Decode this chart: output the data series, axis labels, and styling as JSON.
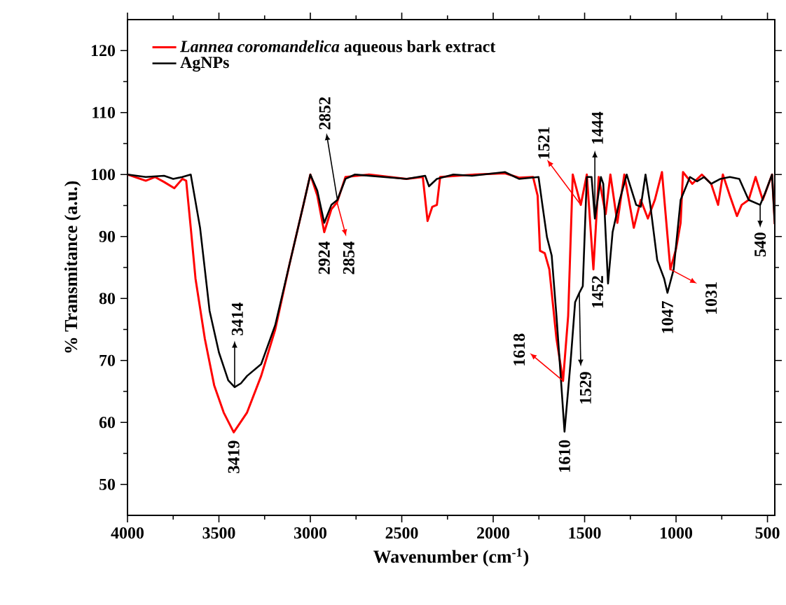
{
  "chart_data": {
    "type": "line",
    "xlabel": "Wavenumber (cm$^{-1}$)",
    "ylabel": "% Transmitance (a.u.)",
    "xlim": [
      4000,
      460
    ],
    "xticks": [
      4000,
      3500,
      3000,
      2500,
      2000,
      1500,
      1000,
      500
    ],
    "ylim": [
      45,
      125
    ],
    "yticks": [
      50,
      60,
      70,
      80,
      90,
      100,
      110,
      120
    ],
    "grid": false,
    "legend": "top left",
    "line_style": "solid",
    "series": [
      {
        "name": "*Lannea coromandelica* aqueous bark extract",
        "color": "#ff0000",
        "x": [
          4000,
          3900,
          3850,
          3800,
          3744,
          3700,
          3679,
          3654,
          3628,
          3577,
          3526,
          3474,
          3419,
          3346,
          3269,
          3192,
          3115,
          3038,
          3000,
          2962,
          2924,
          2885,
          2854,
          2808,
          2679,
          2474,
          2385,
          2359,
          2333,
          2308,
          2290,
          2100,
          1936,
          1859,
          1782,
          1757,
          1744,
          1718,
          1693,
          1654,
          1618,
          1590,
          1565,
          1521,
          1488,
          1452,
          1423,
          1385,
          1359,
          1321,
          1283,
          1231,
          1193,
          1154,
          1116,
          1077,
          1031,
          1000,
          975,
          962,
          911,
          859,
          808,
          770,
          744,
          706,
          667,
          641,
          603,
          565,
          526,
          475,
          460
        ],
        "values": [
          100,
          99,
          99.6,
          98.8,
          97.8,
          99.3,
          99,
          91.4,
          83.2,
          73.5,
          66,
          61.6,
          58.4,
          61.6,
          67.5,
          75,
          85.4,
          95.1,
          100,
          96.6,
          90.7,
          94.4,
          95.5,
          99.6,
          100,
          99.3,
          99.6,
          92.5,
          94.8,
          95.1,
          99.6,
          100,
          100.2,
          99.5,
          99.6,
          96.6,
          87.7,
          87.3,
          84.7,
          73.5,
          66.7,
          77.2,
          100,
          95.1,
          100,
          84.7,
          99.6,
          93.6,
          100,
          92.2,
          100,
          91.4,
          95.9,
          92.9,
          95.9,
          100.4,
          84.7,
          88,
          92.2,
          100.4,
          98.5,
          100,
          98.5,
          95.1,
          100,
          96.6,
          93.3,
          95.1,
          95.9,
          99.6,
          95.9,
          100,
          92
        ]
      },
      {
        "name": "AgNPs",
        "color": "#000000",
        "x": [
          4000,
          3900,
          3800,
          3750,
          3700,
          3654,
          3603,
          3551,
          3500,
          3449,
          3414,
          3380,
          3346,
          3269,
          3192,
          3115,
          3038,
          3000,
          2962,
          2924,
          2885,
          2852,
          2808,
          2756,
          2474,
          2372,
          2351,
          2308,
          2218,
          2116,
          1936,
          1859,
          1752,
          1731,
          1706,
          1680,
          1654,
          1629,
          1610,
          1577,
          1552,
          1529,
          1510,
          1488,
          1462,
          1444,
          1411,
          1398,
          1372,
          1347,
          1308,
          1270,
          1218,
          1193,
          1167,
          1141,
          1103,
          1065,
          1047,
          1013,
          975,
          924,
          885,
          847,
          808,
          757,
          706,
          654,
          603,
          540,
          513,
          475,
          460
        ],
        "values": [
          100,
          99.6,
          99.8,
          99.3,
          99.6,
          100,
          91.4,
          78,
          71.3,
          66.8,
          65.7,
          66.3,
          67.5,
          69.4,
          75.7,
          85.4,
          95.1,
          100,
          97.4,
          92.2,
          95.1,
          95.9,
          99.3,
          100,
          99.3,
          99.8,
          98.1,
          99.3,
          100,
          99.8,
          100.4,
          99.3,
          99.6,
          95.1,
          89.9,
          86.9,
          77.2,
          66.7,
          58.5,
          69.7,
          79.4,
          80.9,
          82,
          99.6,
          99.6,
          92.9,
          99.6,
          98.5,
          82.4,
          90.7,
          95.9,
          100,
          95.1,
          94.8,
          100,
          95.1,
          86.2,
          83.2,
          80.9,
          84.7,
          95.9,
          99.6,
          98.9,
          99.6,
          98.5,
          99.3,
          99.6,
          99.3,
          95.9,
          95.1,
          97,
          100,
          92
        ]
      }
    ],
    "annotations": [
      {
        "text": "3419",
        "x": 3419,
        "y": 58.4
      },
      {
        "text": "3414",
        "x": 3414,
        "y": 65.7
      },
      {
        "text": "2924",
        "x": 2924,
        "y": 90.7
      },
      {
        "text": "2854",
        "x": 2854,
        "y": 95.5
      },
      {
        "text": "2852",
        "x": 2852,
        "y": 95.9
      },
      {
        "text": "1618",
        "x": 1618,
        "y": 66.7
      },
      {
        "text": "1610",
        "x": 1610,
        "y": 58.5
      },
      {
        "text": "1529",
        "x": 1529,
        "y": 80.9
      },
      {
        "text": "1521",
        "x": 1521,
        "y": 95.1
      },
      {
        "text": "1444",
        "x": 1444,
        "y": 92.9
      },
      {
        "text": "1452",
        "x": 1452,
        "y": 84.7
      },
      {
        "text": "1047",
        "x": 1047,
        "y": 80.9
      },
      {
        "text": "1031",
        "x": 1031,
        "y": 84.7
      },
      {
        "text": "540",
        "x": 540,
        "y": 95.1
      }
    ]
  }
}
